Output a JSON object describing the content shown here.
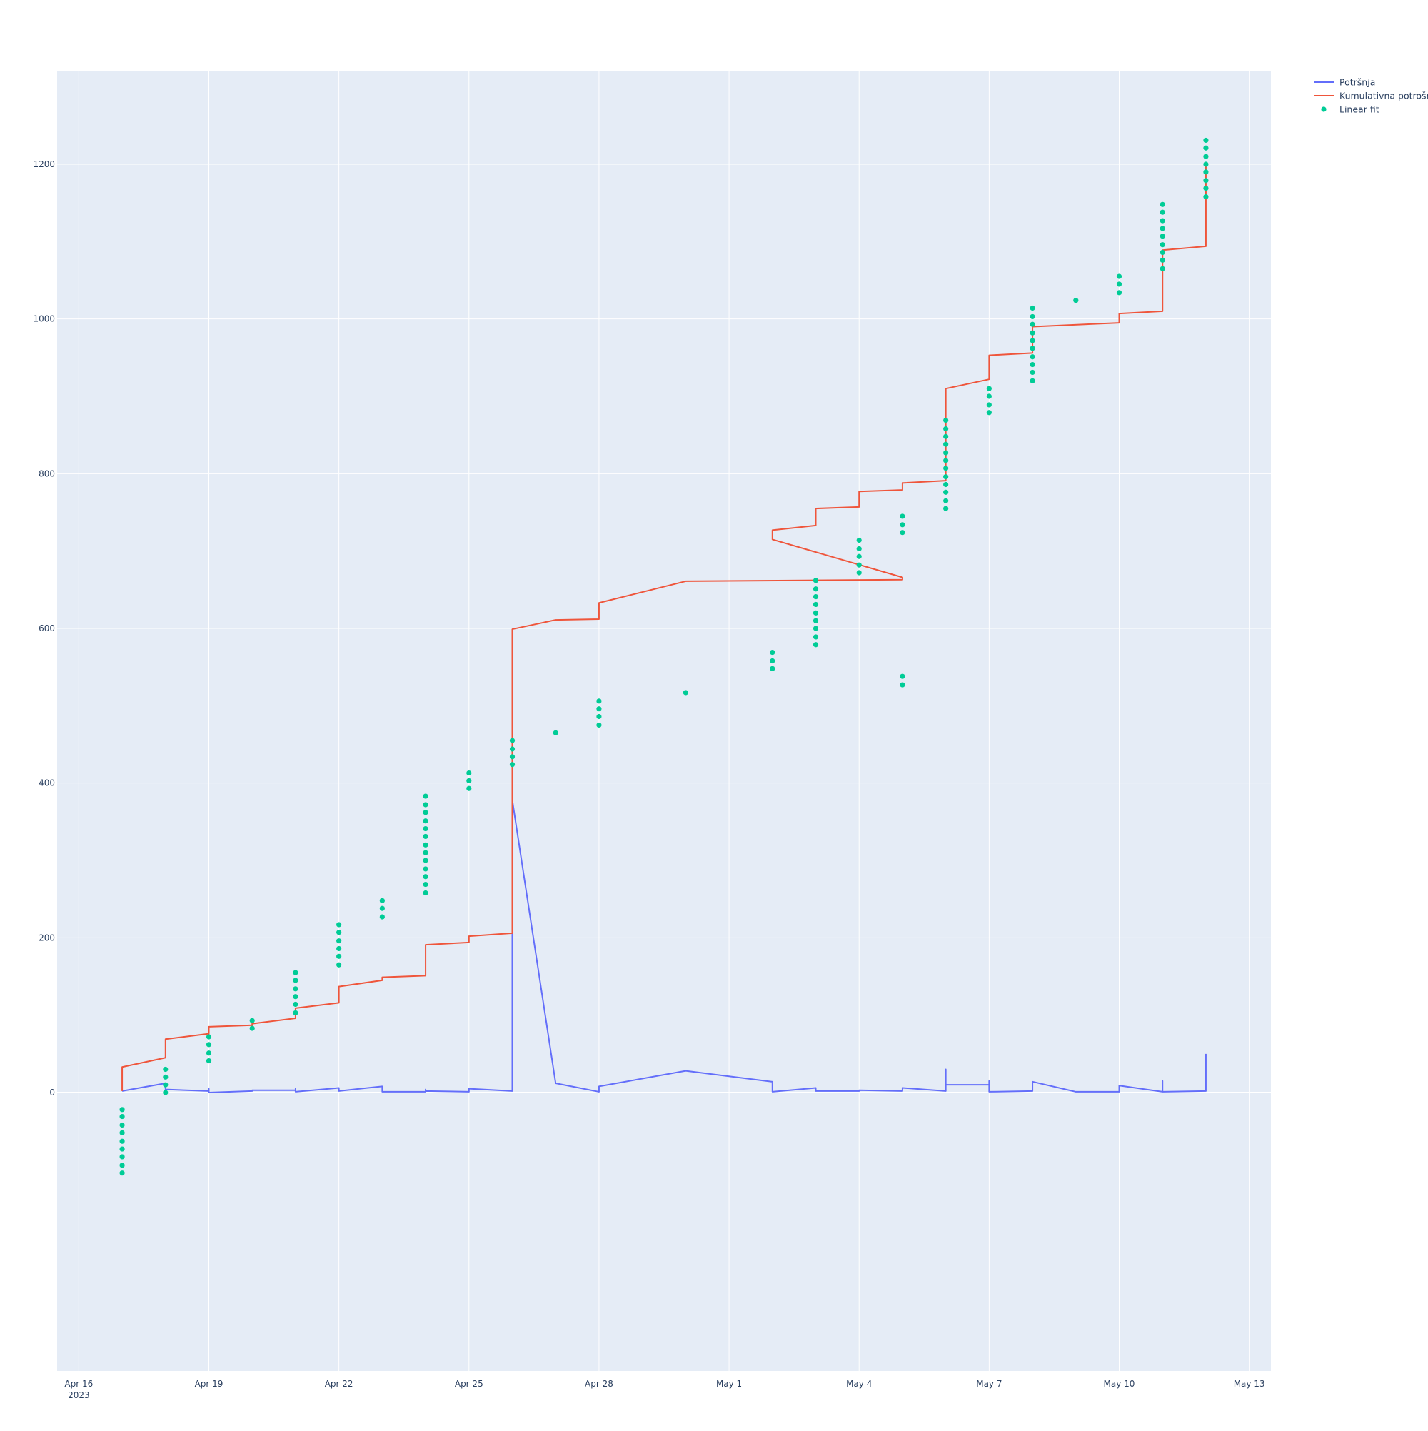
{
  "chart_data": {
    "type": "line",
    "title": "",
    "xlabel": "",
    "ylabel": "",
    "x_axis": {
      "type": "date",
      "range": [
        "2023-04-15T12:00",
        "2023-05-13T12:00"
      ],
      "ticks": [
        {
          "date": "2023-04-16",
          "label": "Apr 16",
          "sublabel": "2023"
        },
        {
          "date": "2023-04-19",
          "label": "Apr 19"
        },
        {
          "date": "2023-04-22",
          "label": "Apr 22"
        },
        {
          "date": "2023-04-25",
          "label": "Apr 25"
        },
        {
          "date": "2023-04-28",
          "label": "Apr 28"
        },
        {
          "date": "2023-05-01",
          "label": "May 1"
        },
        {
          "date": "2023-05-04",
          "label": "May 4"
        },
        {
          "date": "2023-05-07",
          "label": "May 7"
        },
        {
          "date": "2023-05-10",
          "label": "May 10"
        },
        {
          "date": "2023-05-13",
          "label": "May 13"
        }
      ]
    },
    "y_axis": {
      "range": [
        -360,
        1320
      ],
      "ticks": [
        0,
        200,
        400,
        600,
        800,
        1000,
        1200
      ],
      "tick_labels": [
        "0",
        "200",
        "400",
        "600",
        "800",
        "1000",
        "1200"
      ]
    },
    "grid": true,
    "legend_position": "top-right",
    "colors": {
      "plot_bg": "#e5ecf6",
      "grid": "#ffffff",
      "text": "#2a3f5f"
    },
    "series": [
      {
        "name": "Potršnja",
        "mode": "lines",
        "color": "#636efa",
        "points": [
          [
            "2023-04-17",
            2
          ],
          [
            "2023-04-18",
            12
          ],
          [
            "2023-04-18",
            4
          ],
          [
            "2023-04-19",
            2
          ],
          [
            "2023-04-19",
            5
          ],
          [
            "2023-04-19",
            0
          ],
          [
            "2023-04-20",
            2
          ],
          [
            "2023-04-20",
            3
          ],
          [
            "2023-04-21",
            3
          ],
          [
            "2023-04-21",
            5
          ],
          [
            "2023-04-21",
            1
          ],
          [
            "2023-04-22",
            6
          ],
          [
            "2023-04-22",
            2
          ],
          [
            "2023-04-23",
            8
          ],
          [
            "2023-04-23",
            1
          ],
          [
            "2023-04-24",
            1
          ],
          [
            "2023-04-24",
            4
          ],
          [
            "2023-04-24",
            2
          ],
          [
            "2023-04-25",
            1
          ],
          [
            "2023-04-25",
            5
          ],
          [
            "2023-04-26",
            2
          ],
          [
            "2023-04-26",
            378
          ],
          [
            "2023-04-27",
            12
          ],
          [
            "2023-04-28",
            1
          ],
          [
            "2023-04-28",
            8
          ],
          [
            "2023-04-30",
            28
          ],
          [
            "2023-05-02",
            14
          ],
          [
            "2023-05-02",
            12
          ],
          [
            "2023-05-02",
            1
          ],
          [
            "2023-05-03",
            6
          ],
          [
            "2023-05-03",
            2
          ],
          [
            "2023-05-04",
            2
          ],
          [
            "2023-05-04",
            3
          ],
          [
            "2023-05-05",
            2
          ],
          [
            "2023-05-05",
            6
          ],
          [
            "2023-05-06",
            2
          ],
          [
            "2023-05-06",
            30
          ],
          [
            "2023-05-06",
            10
          ],
          [
            "2023-05-07",
            10
          ],
          [
            "2023-05-07",
            15
          ],
          [
            "2023-05-07",
            1
          ],
          [
            "2023-05-08",
            2
          ],
          [
            "2023-05-08",
            14
          ],
          [
            "2023-05-09",
            1
          ],
          [
            "2023-05-10",
            1
          ],
          [
            "2023-05-10",
            9
          ],
          [
            "2023-05-11",
            1
          ],
          [
            "2023-05-11",
            15
          ],
          [
            "2023-05-11",
            1
          ],
          [
            "2023-05-12",
            2
          ],
          [
            "2023-05-12",
            50
          ]
        ]
      },
      {
        "name": "Kumulativna potrošnja",
        "mode": "lines",
        "color": "#ef553b",
        "points": [
          [
            "2023-04-17",
            2
          ],
          [
            "2023-04-17",
            33
          ],
          [
            "2023-04-18",
            45
          ],
          [
            "2023-04-18",
            69
          ],
          [
            "2023-04-19",
            76
          ],
          [
            "2023-04-19",
            85
          ],
          [
            "2023-04-20",
            87
          ],
          [
            "2023-04-20",
            89
          ],
          [
            "2023-04-21",
            96
          ],
          [
            "2023-04-21",
            109
          ],
          [
            "2023-04-22",
            116
          ],
          [
            "2023-04-22",
            137
          ],
          [
            "2023-04-23",
            145
          ],
          [
            "2023-04-23",
            149
          ],
          [
            "2023-04-24",
            151
          ],
          [
            "2023-04-24",
            191
          ],
          [
            "2023-04-25",
            194
          ],
          [
            "2023-04-25",
            202
          ],
          [
            "2023-04-26",
            206
          ],
          [
            "2023-04-26",
            599
          ],
          [
            "2023-04-27",
            611
          ],
          [
            "2023-04-28",
            612
          ],
          [
            "2023-04-28",
            633
          ],
          [
            "2023-04-30",
            661
          ],
          [
            "2023-05-05",
            663
          ],
          [
            "2023-05-05",
            666
          ],
          [
            "2023-05-02",
            715
          ],
          [
            "2023-05-02",
            727
          ],
          [
            "2023-05-03",
            733
          ],
          [
            "2023-05-03",
            755
          ],
          [
            "2023-05-04",
            757
          ],
          [
            "2023-05-04",
            777
          ],
          [
            "2023-05-05",
            779
          ],
          [
            "2023-05-05",
            788
          ],
          [
            "2023-05-06",
            791
          ],
          [
            "2023-05-06",
            910
          ],
          [
            "2023-05-07",
            922
          ],
          [
            "2023-05-07",
            953
          ],
          [
            "2023-05-08",
            956
          ],
          [
            "2023-05-08",
            990
          ],
          [
            "2023-05-10",
            995
          ],
          [
            "2023-05-10",
            1007
          ],
          [
            "2023-05-11",
            1010
          ],
          [
            "2023-05-11",
            1089
          ],
          [
            "2023-05-12",
            1094
          ],
          [
            "2023-05-12",
            1200
          ]
        ]
      },
      {
        "name": "Linear fit",
        "mode": "markers",
        "color": "#00cc96",
        "points": [
          [
            "2023-04-17",
            -22
          ],
          [
            "2023-04-17",
            -31
          ],
          [
            "2023-04-17",
            -42
          ],
          [
            "2023-04-17",
            -52
          ],
          [
            "2023-04-17",
            -63
          ],
          [
            "2023-04-17",
            -73
          ],
          [
            "2023-04-17",
            -83
          ],
          [
            "2023-04-17",
            -94
          ],
          [
            "2023-04-17",
            -104
          ],
          [
            "2023-04-18",
            30
          ],
          [
            "2023-04-18",
            20
          ],
          [
            "2023-04-18",
            10
          ],
          [
            "2023-04-18",
            0
          ],
          [
            "2023-04-19",
            72
          ],
          [
            "2023-04-19",
            62
          ],
          [
            "2023-04-19",
            51
          ],
          [
            "2023-04-19",
            41
          ],
          [
            "2023-04-20",
            93
          ],
          [
            "2023-04-20",
            83
          ],
          [
            "2023-04-21",
            155
          ],
          [
            "2023-04-21",
            145
          ],
          [
            "2023-04-21",
            134
          ],
          [
            "2023-04-21",
            124
          ],
          [
            "2023-04-21",
            114
          ],
          [
            "2023-04-21",
            103
          ],
          [
            "2023-04-22",
            217
          ],
          [
            "2023-04-22",
            207
          ],
          [
            "2023-04-22",
            196
          ],
          [
            "2023-04-22",
            186
          ],
          [
            "2023-04-22",
            176
          ],
          [
            "2023-04-22",
            165
          ],
          [
            "2023-04-23",
            248
          ],
          [
            "2023-04-23",
            238
          ],
          [
            "2023-04-23",
            227
          ],
          [
            "2023-04-24",
            383
          ],
          [
            "2023-04-24",
            372
          ],
          [
            "2023-04-24",
            362
          ],
          [
            "2023-04-24",
            351
          ],
          [
            "2023-04-24",
            341
          ],
          [
            "2023-04-24",
            331
          ],
          [
            "2023-04-24",
            320
          ],
          [
            "2023-04-24",
            310
          ],
          [
            "2023-04-24",
            300
          ],
          [
            "2023-04-24",
            289
          ],
          [
            "2023-04-24",
            279
          ],
          [
            "2023-04-24",
            269
          ],
          [
            "2023-04-24",
            258
          ],
          [
            "2023-04-25",
            413
          ],
          [
            "2023-04-25",
            403
          ],
          [
            "2023-04-25",
            393
          ],
          [
            "2023-04-26",
            455
          ],
          [
            "2023-04-26",
            444
          ],
          [
            "2023-04-26",
            434
          ],
          [
            "2023-04-26",
            424
          ],
          [
            "2023-04-27",
            465
          ],
          [
            "2023-04-28",
            506
          ],
          [
            "2023-04-28",
            496
          ],
          [
            "2023-04-28",
            486
          ],
          [
            "2023-04-28",
            475
          ],
          [
            "2023-04-30",
            517
          ],
          [
            "2023-05-02",
            569
          ],
          [
            "2023-05-02",
            558
          ],
          [
            "2023-05-02",
            548
          ],
          [
            "2023-05-03",
            662
          ],
          [
            "2023-05-03",
            651
          ],
          [
            "2023-05-03",
            641
          ],
          [
            "2023-05-03",
            631
          ],
          [
            "2023-05-03",
            620
          ],
          [
            "2023-05-03",
            610
          ],
          [
            "2023-05-03",
            600
          ],
          [
            "2023-05-03",
            589
          ],
          [
            "2023-05-03",
            579
          ],
          [
            "2023-05-04",
            714
          ],
          [
            "2023-05-04",
            703
          ],
          [
            "2023-05-04",
            693
          ],
          [
            "2023-05-04",
            682
          ],
          [
            "2023-05-04",
            672
          ],
          [
            "2023-05-05",
            745
          ],
          [
            "2023-05-05",
            734
          ],
          [
            "2023-05-05",
            724
          ],
          [
            "2023-05-05",
            538
          ],
          [
            "2023-05-05",
            527
          ],
          [
            "2023-05-06",
            869
          ],
          [
            "2023-05-06",
            858
          ],
          [
            "2023-05-06",
            848
          ],
          [
            "2023-05-06",
            838
          ],
          [
            "2023-05-06",
            827
          ],
          [
            "2023-05-06",
            817
          ],
          [
            "2023-05-06",
            807
          ],
          [
            "2023-05-06",
            796
          ],
          [
            "2023-05-06",
            786
          ],
          [
            "2023-05-06",
            776
          ],
          [
            "2023-05-06",
            765
          ],
          [
            "2023-05-06",
            755
          ],
          [
            "2023-05-07",
            910
          ],
          [
            "2023-05-07",
            900
          ],
          [
            "2023-05-07",
            889
          ],
          [
            "2023-05-07",
            879
          ],
          [
            "2023-05-08",
            1014
          ],
          [
            "2023-05-08",
            1003
          ],
          [
            "2023-05-08",
            993
          ],
          [
            "2023-05-08",
            982
          ],
          [
            "2023-05-08",
            972
          ],
          [
            "2023-05-08",
            962
          ],
          [
            "2023-05-08",
            951
          ],
          [
            "2023-05-08",
            941
          ],
          [
            "2023-05-08",
            931
          ],
          [
            "2023-05-08",
            920
          ],
          [
            "2023-05-09",
            1024
          ],
          [
            "2023-05-10",
            1055
          ],
          [
            "2023-05-10",
            1045
          ],
          [
            "2023-05-10",
            1034
          ],
          [
            "2023-05-11",
            1148
          ],
          [
            "2023-05-11",
            1138
          ],
          [
            "2023-05-11",
            1127
          ],
          [
            "2023-05-11",
            1117
          ],
          [
            "2023-05-11",
            1107
          ],
          [
            "2023-05-11",
            1096
          ],
          [
            "2023-05-11",
            1086
          ],
          [
            "2023-05-11",
            1076
          ],
          [
            "2023-05-11",
            1065
          ],
          [
            "2023-05-12",
            1231
          ],
          [
            "2023-05-12",
            1221
          ],
          [
            "2023-05-12",
            1210
          ],
          [
            "2023-05-12",
            1200
          ],
          [
            "2023-05-12",
            1190
          ],
          [
            "2023-05-12",
            1179
          ],
          [
            "2023-05-12",
            1169
          ],
          [
            "2023-05-12",
            1158
          ]
        ]
      }
    ]
  }
}
